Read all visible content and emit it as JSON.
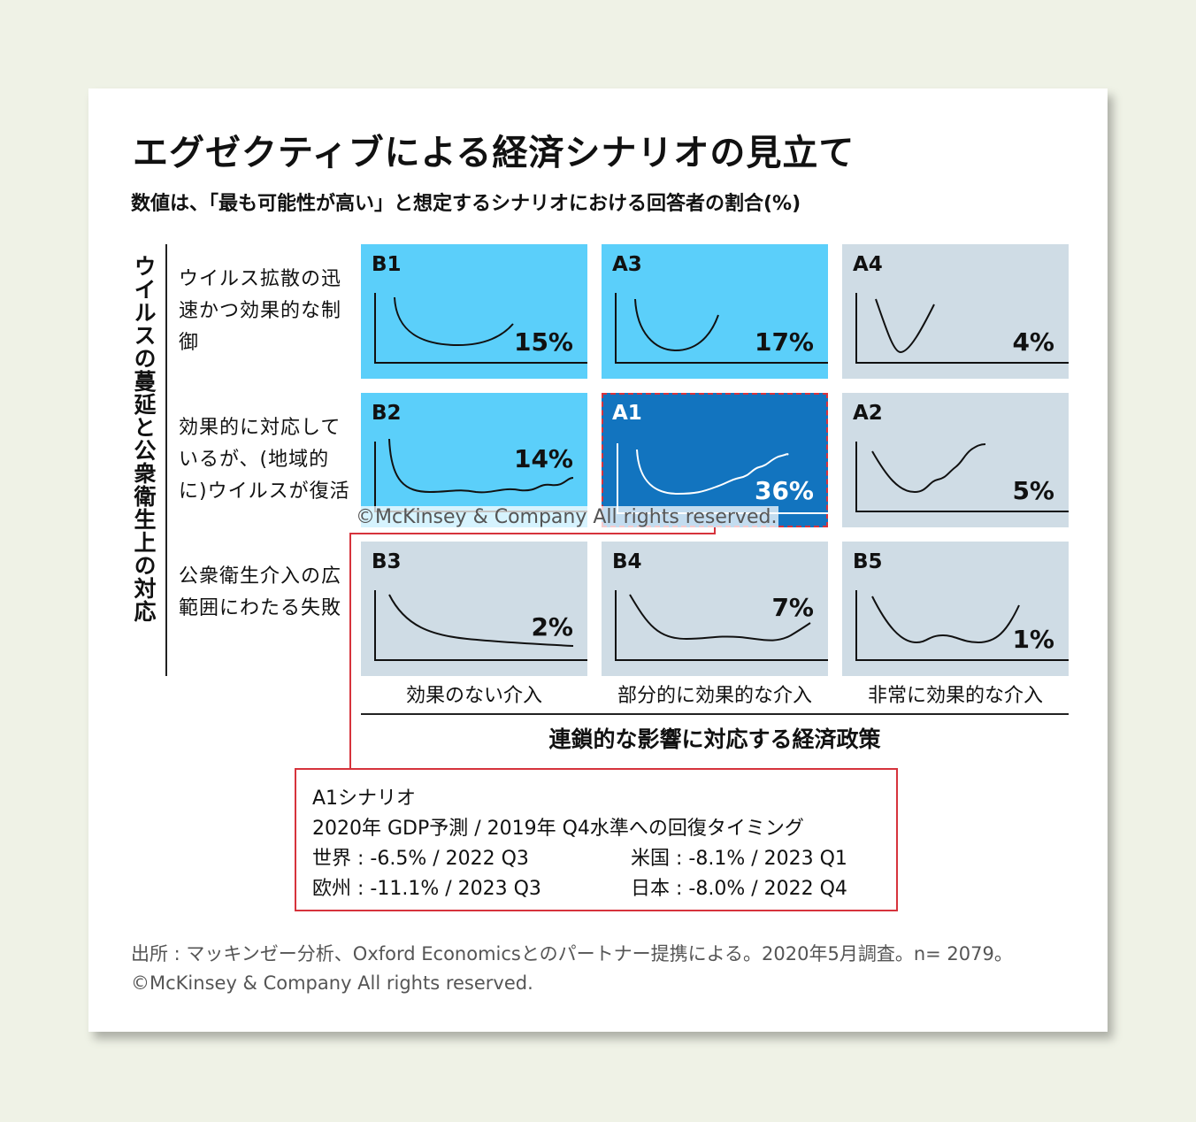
{
  "title": "エグゼクティブによる経済シナリオの見立て",
  "subtitle": "数値は、「最も可能性が高い」と想定するシナリオにおける回答者の割合(%)",
  "y_axis_title": "ウイルスの蔓延と公衆衛生上の対応",
  "x_axis_title": "連鎖的な影響に対応する経済政策",
  "row_labels": [
    "ウイルス拡散の迅速かつ効果的な制御",
    "効果的に対応しているが、(地域的に)ウイルスが復活",
    "公衆衛生介入の広範囲にわたる失敗"
  ],
  "x_categories": [
    "効果のない介入",
    "部分的に効果的な介入",
    "非常に効果的な介入"
  ],
  "watermark": "©McKinsey & Company All rights reserved.",
  "colors": {
    "likely_cell": "#5bcffa",
    "other_cell": "#cfdce5",
    "most_likely_cell": "#1274bf",
    "callout_border": "#d6333c",
    "background": "#eff2e6"
  },
  "scenario_box": {
    "line1": "A1シナリオ",
    "line2": "2020年 GDP予測 / 2019年 Q4水準への回復タイミング",
    "world": "世界 : -6.5% / 2022 Q3",
    "us": "米国 : -8.1% / 2023 Q1",
    "europe": "欧州 : -11.1% / 2023 Q3",
    "japan": "日本 : -8.0% / 2022 Q4"
  },
  "source_line1": "出所 : マッキンゼー分析、Oxford Economicsとのパートナー提携による。2020年5月調査。n= 2079。",
  "source_line2": "©McKinsey & Company All rights reserved.",
  "chart_data": {
    "type": "table",
    "rows": [
      "ウイルス拡散の迅速かつ効果的な制御",
      "効果的に対応しているが、(地域的に)ウイルスが復活",
      "公衆衛生介入の広範囲にわたる失敗"
    ],
    "columns": [
      "効果のない介入",
      "部分的に効果的な介入",
      "非常に効果的な介入"
    ],
    "cells": [
      [
        {
          "code": "B1",
          "value": 15,
          "label": "15%"
        },
        {
          "code": "A3",
          "value": 17,
          "label": "17%"
        },
        {
          "code": "A4",
          "value": 4,
          "label": "4%"
        }
      ],
      [
        {
          "code": "B2",
          "value": 14,
          "label": "14%"
        },
        {
          "code": "A1",
          "value": 36,
          "label": "36%"
        },
        {
          "code": "A2",
          "value": 5,
          "label": "5%"
        }
      ],
      [
        {
          "code": "B3",
          "value": 2,
          "label": "2%"
        },
        {
          "code": "B4",
          "value": 7,
          "label": "7%"
        },
        {
          "code": "B5",
          "value": 1,
          "label": "1%"
        }
      ]
    ]
  }
}
